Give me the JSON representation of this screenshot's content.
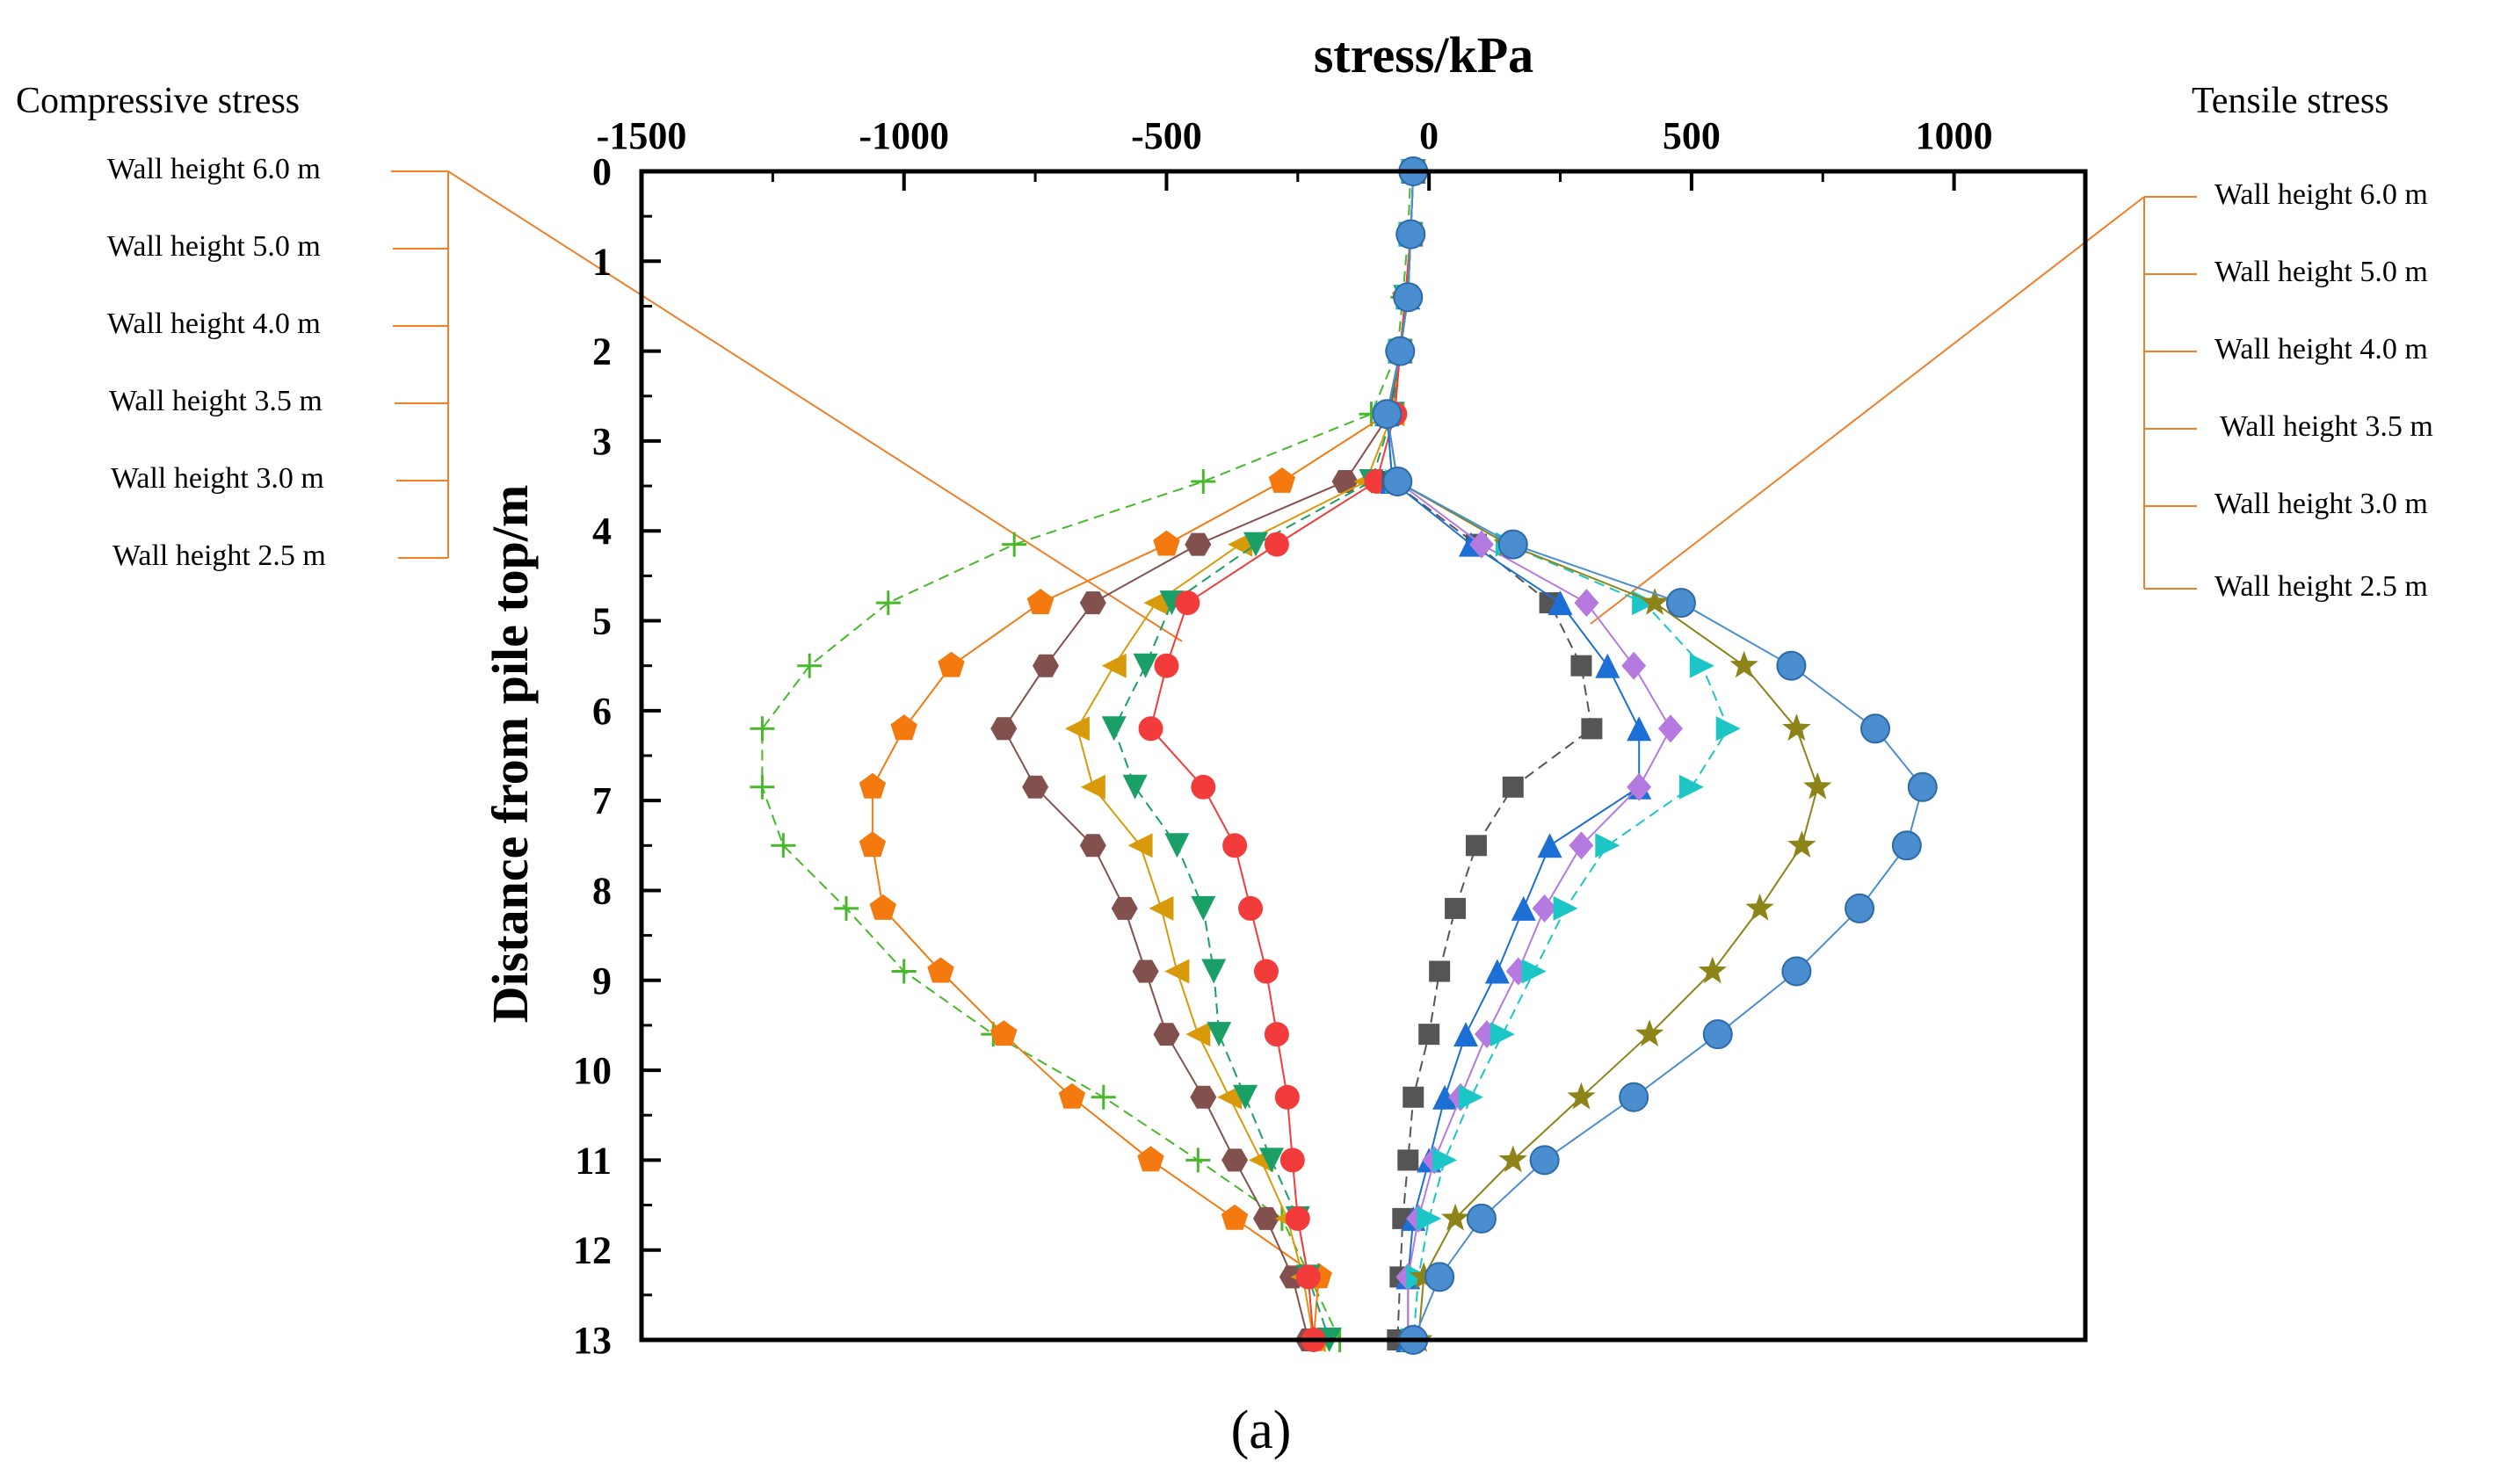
{
  "chart_data": {
    "type": "line",
    "title": "",
    "xlabel": "stress/kPa",
    "ylabel": "Distance from pile top/m",
    "xlim": [
      -1500,
      1250
    ],
    "ylim": [
      0,
      13
    ],
    "y_reversed": true,
    "x_axis_position": "top",
    "x_ticks": [
      -1500,
      -1000,
      -500,
      0,
      500,
      1000
    ],
    "x_tick_labels": [
      "-1500",
      "-1000",
      "-500",
      "0",
      "500",
      "1000"
    ],
    "y_ticks": [
      0,
      1,
      2,
      3,
      4,
      5,
      6,
      7,
      8,
      9,
      10,
      11,
      12,
      13
    ],
    "y_tick_labels": [
      "0",
      "1",
      "2",
      "3",
      "4",
      "5",
      "6",
      "7",
      "8",
      "9",
      "10",
      "11",
      "12",
      "13"
    ],
    "grid": false,
    "caption": "(a)",
    "legend_left": {
      "heading": "Compressive stress",
      "entries": [
        "Wall height 6.0 m",
        "Wall height 5.0 m",
        "Wall height 4.0 m",
        "Wall height 3.5 m",
        "Wall height 3.0 m",
        "Wall height 2.5 m"
      ]
    },
    "legend_right": {
      "heading": "Tensile stress",
      "entries": [
        "Wall height 6.0 m",
        "Wall height 5.0 m",
        "Wall height 4.0 m",
        "Wall height 3.5 m",
        "Wall height 3.0 m",
        "Wall height 2.5 m"
      ]
    },
    "leader_color": "#f07f2a",
    "series": [
      {
        "name": "Compressive - Wall height 6.0 m",
        "color": "#47b82a",
        "marker": "plus",
        "dash": true,
        "x": [
          -35,
          -40,
          -50,
          -60,
          -110,
          -430,
          -790,
          -1030,
          -1180,
          -1270,
          -1270,
          -1230,
          -1110,
          -1000,
          -830,
          -620,
          -440,
          -280,
          -170
        ],
        "y": [
          0,
          0.7,
          1.4,
          2.0,
          2.7,
          3.45,
          4.15,
          4.8,
          5.5,
          6.2,
          6.85,
          7.5,
          8.2,
          8.9,
          9.6,
          10.3,
          11.0,
          11.65,
          13
        ]
      },
      {
        "name": "Compressive - Wall height 5.0 m",
        "color": "#f47a10",
        "marker": "pentagon",
        "dash": false,
        "x": [
          -30,
          -35,
          -45,
          -55,
          -80,
          -280,
          -500,
          -740,
          -910,
          -1000,
          -1060,
          -1060,
          -1040,
          -930,
          -810,
          -680,
          -530,
          -370,
          -210,
          -220
        ],
        "y": [
          0,
          0.7,
          1.4,
          2.0,
          2.7,
          3.45,
          4.15,
          4.8,
          5.5,
          6.2,
          6.85,
          7.5,
          8.2,
          8.9,
          9.6,
          10.3,
          11.0,
          11.65,
          12.3,
          13
        ]
      },
      {
        "name": "Compressive - Wall height 4.0 m",
        "color": "#82514e",
        "marker": "hexagon",
        "dash": false,
        "x": [
          -30,
          -35,
          -45,
          -55,
          -75,
          -160,
          -440,
          -640,
          -730,
          -810,
          -750,
          -640,
          -580,
          -540,
          -500,
          -430,
          -370,
          -310,
          -260,
          -230
        ],
        "y": [
          0,
          0.7,
          1.4,
          2.0,
          2.7,
          3.45,
          4.15,
          4.8,
          5.5,
          6.2,
          6.85,
          7.5,
          8.2,
          8.9,
          9.6,
          10.3,
          11.0,
          11.65,
          12.3,
          13
        ]
      },
      {
        "name": "Compressive - Wall height 3.5 m",
        "color": "#d99a0a",
        "marker": "triangle-left",
        "dash": false,
        "x": [
          -30,
          -35,
          -45,
          -55,
          -70,
          -120,
          -360,
          -520,
          -600,
          -670,
          -640,
          -550,
          -510,
          -480,
          -440,
          -380,
          -320,
          -270,
          -240,
          -220
        ],
        "y": [
          0,
          0.7,
          1.4,
          2.0,
          2.7,
          3.45,
          4.15,
          4.8,
          5.5,
          6.2,
          6.85,
          7.5,
          8.2,
          8.9,
          9.6,
          10.3,
          11.0,
          11.65,
          12.3,
          13
        ]
      },
      {
        "name": "Compressive - Wall height 3.0 m",
        "color": "#1aa067",
        "marker": "triangle-down",
        "dash": true,
        "x": [
          -30,
          -35,
          -45,
          -55,
          -70,
          -110,
          -330,
          -490,
          -540,
          -600,
          -560,
          -480,
          -430,
          -410,
          -400,
          -350,
          -300,
          -250,
          -230,
          -190
        ],
        "y": [
          0,
          0.7,
          1.4,
          2.0,
          2.7,
          3.45,
          4.15,
          4.8,
          5.5,
          6.2,
          6.85,
          7.5,
          8.2,
          8.9,
          9.6,
          10.3,
          11.0,
          11.65,
          12.3,
          13
        ]
      },
      {
        "name": "Compressive - Wall height 2.5 m",
        "color": "#f23c3c",
        "marker": "circle",
        "dash": false,
        "x": [
          -30,
          -35,
          -45,
          -55,
          -65,
          -100,
          -290,
          -460,
          -500,
          -530,
          -430,
          -370,
          -340,
          -310,
          -290,
          -270,
          -260,
          -250,
          -230,
          -220
        ],
        "y": [
          0,
          0.7,
          1.4,
          2.0,
          2.7,
          3.45,
          4.15,
          4.8,
          5.5,
          6.2,
          6.85,
          7.5,
          8.2,
          8.9,
          9.6,
          10.3,
          11.0,
          11.65,
          12.3,
          13
        ]
      },
      {
        "name": "Tensile - Wall height 6.0 m",
        "color": "#555555",
        "marker": "square",
        "dash": true,
        "x": [
          -30,
          -35,
          -40,
          -55,
          -80,
          -70,
          90,
          230,
          290,
          310,
          160,
          90,
          50,
          20,
          0,
          -30,
          -40,
          -50,
          -55,
          -60
        ],
        "y": [
          0,
          0.7,
          1.4,
          2.0,
          2.7,
          3.45,
          4.15,
          4.8,
          5.5,
          6.2,
          6.85,
          7.5,
          8.2,
          8.9,
          9.6,
          10.3,
          11.0,
          11.65,
          12.3,
          13
        ]
      },
      {
        "name": "Tensile - Wall height 5.0 m",
        "color": "#1c6fd4",
        "marker": "triangle-up",
        "dash": false,
        "x": [
          -30,
          -35,
          -40,
          -55,
          -80,
          -70,
          80,
          250,
          340,
          400,
          400,
          230,
          180,
          130,
          70,
          30,
          0,
          -30,
          -40,
          -40
        ],
        "y": [
          0,
          0.7,
          1.4,
          2.0,
          2.7,
          3.45,
          4.15,
          4.8,
          5.5,
          6.2,
          6.85,
          7.5,
          8.2,
          8.9,
          9.6,
          10.3,
          11.0,
          11.65,
          12.3,
          13
        ]
      },
      {
        "name": "Tensile - Wall height 4.0 m",
        "color": "#b47ae0",
        "marker": "diamond",
        "dash": false,
        "x": [
          -30,
          -35,
          -40,
          -55,
          -80,
          -60,
          100,
          300,
          390,
          460,
          400,
          290,
          220,
          170,
          110,
          60,
          10,
          -20,
          -40,
          -40
        ],
        "y": [
          0,
          0.7,
          1.4,
          2.0,
          2.7,
          3.45,
          4.15,
          4.8,
          5.5,
          6.2,
          6.85,
          7.5,
          8.2,
          8.9,
          9.6,
          10.3,
          11.0,
          11.65,
          12.3,
          13
        ]
      },
      {
        "name": "Tensile - Wall height 3.5 m",
        "color": "#1cc6c6",
        "marker": "triangle-right",
        "dash": true,
        "x": [
          -30,
          -35,
          -40,
          -55,
          -80,
          -60,
          150,
          410,
          520,
          570,
          500,
          340,
          260,
          200,
          140,
          80,
          30,
          0,
          -20,
          -30
        ],
        "y": [
          0,
          0.7,
          1.4,
          2.0,
          2.7,
          3.45,
          4.15,
          4.8,
          5.5,
          6.2,
          6.85,
          7.5,
          8.2,
          8.9,
          9.6,
          10.3,
          11.0,
          11.65,
          12.3,
          13
        ]
      },
      {
        "name": "Tensile - Wall height 3.0 m",
        "color": "#8c8418",
        "marker": "star",
        "dash": false,
        "x": [
          -30,
          -35,
          -40,
          -55,
          -80,
          -60,
          150,
          430,
          600,
          700,
          740,
          710,
          630,
          540,
          420,
          290,
          160,
          50,
          -10,
          -20
        ],
        "y": [
          0,
          0.7,
          1.4,
          2.0,
          2.7,
          3.45,
          4.15,
          4.8,
          5.5,
          6.2,
          6.85,
          7.5,
          8.2,
          8.9,
          9.6,
          10.3,
          11.0,
          11.65,
          12.3,
          13
        ]
      },
      {
        "name": "Tensile - Wall height 2.5 m",
        "color": "#4b8ed0",
        "marker": "sphere",
        "dash": false,
        "x": [
          -30,
          -35,
          -40,
          -55,
          -80,
          -60,
          160,
          480,
          690,
          850,
          940,
          910,
          820,
          700,
          550,
          390,
          220,
          100,
          20,
          -30
        ],
        "y": [
          0,
          0.7,
          1.4,
          2.0,
          2.7,
          3.45,
          4.15,
          4.8,
          5.5,
          6.2,
          6.85,
          7.5,
          8.2,
          8.9,
          9.6,
          10.3,
          11.0,
          11.65,
          12.3,
          13
        ]
      }
    ]
  }
}
